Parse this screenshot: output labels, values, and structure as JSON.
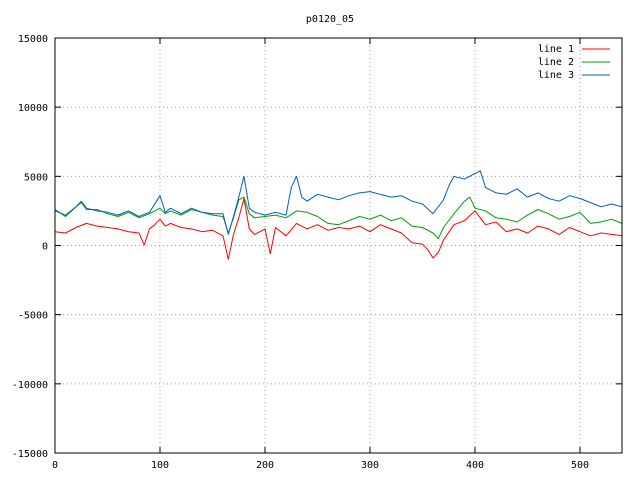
{
  "chart_data": {
    "type": "line",
    "title": "p0120_05",
    "xlabel": "",
    "ylabel": "",
    "xlim": [
      0,
      540
    ],
    "ylim": [
      -15000,
      15000
    ],
    "x_ticks": [
      0,
      100,
      200,
      300,
      400,
      500
    ],
    "y_ticks": [
      -15000,
      -10000,
      -5000,
      0,
      5000,
      10000,
      15000
    ],
    "grid": true,
    "legend_position": "top-right",
    "series": [
      {
        "name": "line 1",
        "color": "#ff0000",
        "points": [
          [
            0,
            1000
          ],
          [
            10,
            900
          ],
          [
            20,
            1300
          ],
          [
            30,
            1600
          ],
          [
            40,
            1400
          ],
          [
            50,
            1300
          ],
          [
            60,
            1200
          ],
          [
            70,
            1000
          ],
          [
            80,
            900
          ],
          [
            85,
            50
          ],
          [
            90,
            1200
          ],
          [
            95,
            1500
          ],
          [
            100,
            1900
          ],
          [
            105,
            1400
          ],
          [
            110,
            1600
          ],
          [
            120,
            1300
          ],
          [
            130,
            1200
          ],
          [
            140,
            1000
          ],
          [
            150,
            1100
          ],
          [
            160,
            700
          ],
          [
            165,
            -1000
          ],
          [
            170,
            800
          ],
          [
            175,
            2000
          ],
          [
            180,
            3400
          ],
          [
            185,
            1200
          ],
          [
            190,
            800
          ],
          [
            195,
            1000
          ],
          [
            200,
            1200
          ],
          [
            205,
            -600
          ],
          [
            210,
            1300
          ],
          [
            220,
            700
          ],
          [
            230,
            1600
          ],
          [
            240,
            1200
          ],
          [
            250,
            1500
          ],
          [
            260,
            1100
          ],
          [
            270,
            1300
          ],
          [
            280,
            1200
          ],
          [
            290,
            1400
          ],
          [
            300,
            1000
          ],
          [
            310,
            1500
          ],
          [
            320,
            1200
          ],
          [
            330,
            900
          ],
          [
            340,
            200
          ],
          [
            350,
            100
          ],
          [
            355,
            -300
          ],
          [
            360,
            -900
          ],
          [
            365,
            -500
          ],
          [
            370,
            400
          ],
          [
            380,
            1500
          ],
          [
            390,
            1800
          ],
          [
            400,
            2500
          ],
          [
            410,
            1500
          ],
          [
            420,
            1700
          ],
          [
            430,
            1000
          ],
          [
            440,
            1200
          ],
          [
            450,
            900
          ],
          [
            460,
            1400
          ],
          [
            470,
            1200
          ],
          [
            480,
            800
          ],
          [
            490,
            1300
          ],
          [
            500,
            1000
          ],
          [
            510,
            700
          ],
          [
            520,
            900
          ],
          [
            530,
            800
          ],
          [
            540,
            700
          ]
        ]
      },
      {
        "name": "line 2",
        "color": "#00a000",
        "points": [
          [
            0,
            2500
          ],
          [
            10,
            2200
          ],
          [
            20,
            2800
          ],
          [
            25,
            3100
          ],
          [
            30,
            2600
          ],
          [
            40,
            2600
          ],
          [
            50,
            2300
          ],
          [
            60,
            2100
          ],
          [
            70,
            2400
          ],
          [
            80,
            2000
          ],
          [
            90,
            2300
          ],
          [
            100,
            2700
          ],
          [
            105,
            2300
          ],
          [
            110,
            2500
          ],
          [
            120,
            2200
          ],
          [
            130,
            2600
          ],
          [
            140,
            2400
          ],
          [
            150,
            2200
          ],
          [
            160,
            2100
          ],
          [
            165,
            900
          ],
          [
            170,
            2000
          ],
          [
            175,
            3300
          ],
          [
            180,
            3500
          ],
          [
            185,
            2300
          ],
          [
            190,
            2000
          ],
          [
            200,
            2100
          ],
          [
            210,
            2200
          ],
          [
            220,
            2000
          ],
          [
            230,
            2500
          ],
          [
            240,
            2400
          ],
          [
            250,
            2100
          ],
          [
            260,
            1600
          ],
          [
            270,
            1500
          ],
          [
            280,
            1800
          ],
          [
            290,
            2100
          ],
          [
            300,
            1900
          ],
          [
            310,
            2200
          ],
          [
            320,
            1800
          ],
          [
            330,
            2000
          ],
          [
            340,
            1400
          ],
          [
            350,
            1300
          ],
          [
            360,
            900
          ],
          [
            365,
            500
          ],
          [
            370,
            1300
          ],
          [
            380,
            2300
          ],
          [
            390,
            3200
          ],
          [
            395,
            3500
          ],
          [
            400,
            2700
          ],
          [
            410,
            2500
          ],
          [
            420,
            2000
          ],
          [
            430,
            1900
          ],
          [
            440,
            1700
          ],
          [
            450,
            2200
          ],
          [
            460,
            2600
          ],
          [
            470,
            2300
          ],
          [
            480,
            1900
          ],
          [
            490,
            2100
          ],
          [
            500,
            2400
          ],
          [
            510,
            1600
          ],
          [
            520,
            1700
          ],
          [
            530,
            1900
          ],
          [
            540,
            1600
          ]
        ]
      },
      {
        "name": "line 3",
        "color": "#0060c0",
        "points": [
          [
            0,
            2600
          ],
          [
            10,
            2100
          ],
          [
            20,
            2800
          ],
          [
            25,
            3200
          ],
          [
            30,
            2700
          ],
          [
            40,
            2500
          ],
          [
            50,
            2400
          ],
          [
            60,
            2200
          ],
          [
            70,
            2500
          ],
          [
            80,
            2100
          ],
          [
            90,
            2400
          ],
          [
            100,
            3600
          ],
          [
            105,
            2400
          ],
          [
            110,
            2700
          ],
          [
            120,
            2300
          ],
          [
            130,
            2700
          ],
          [
            140,
            2400
          ],
          [
            150,
            2300
          ],
          [
            160,
            2300
          ],
          [
            165,
            800
          ],
          [
            170,
            2100
          ],
          [
            175,
            3500
          ],
          [
            180,
            5000
          ],
          [
            185,
            2700
          ],
          [
            190,
            2400
          ],
          [
            200,
            2200
          ],
          [
            210,
            2400
          ],
          [
            220,
            2200
          ],
          [
            225,
            4200
          ],
          [
            230,
            5000
          ],
          [
            235,
            3500
          ],
          [
            240,
            3200
          ],
          [
            250,
            3700
          ],
          [
            260,
            3500
          ],
          [
            270,
            3300
          ],
          [
            280,
            3600
          ],
          [
            290,
            3800
          ],
          [
            300,
            3900
          ],
          [
            310,
            3700
          ],
          [
            320,
            3500
          ],
          [
            330,
            3600
          ],
          [
            340,
            3200
          ],
          [
            350,
            3000
          ],
          [
            360,
            2300
          ],
          [
            370,
            3300
          ],
          [
            375,
            4300
          ],
          [
            380,
            5000
          ],
          [
            390,
            4800
          ],
          [
            400,
            5200
          ],
          [
            405,
            5400
          ],
          [
            410,
            4200
          ],
          [
            420,
            3800
          ],
          [
            430,
            3700
          ],
          [
            440,
            4100
          ],
          [
            450,
            3500
          ],
          [
            460,
            3800
          ],
          [
            470,
            3400
          ],
          [
            480,
            3200
          ],
          [
            490,
            3600
          ],
          [
            500,
            3400
          ],
          [
            510,
            3100
          ],
          [
            520,
            2800
          ],
          [
            530,
            3000
          ],
          [
            540,
            2800
          ]
        ]
      }
    ]
  }
}
